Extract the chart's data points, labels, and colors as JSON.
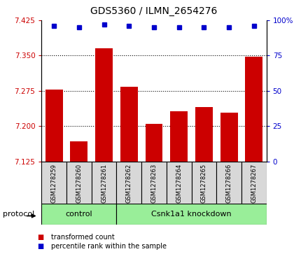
{
  "title": "GDS5360 / ILMN_2654276",
  "samples": [
    "GSM1278259",
    "GSM1278260",
    "GSM1278261",
    "GSM1278262",
    "GSM1278263",
    "GSM1278264",
    "GSM1278265",
    "GSM1278266",
    "GSM1278267"
  ],
  "bar_values": [
    7.278,
    7.168,
    7.365,
    7.283,
    7.205,
    7.232,
    7.24,
    7.228,
    7.348
  ],
  "percentile_values": [
    96,
    95,
    97,
    96,
    95,
    95,
    95,
    95,
    96
  ],
  "ylim_left": [
    7.125,
    7.425
  ],
  "ylim_right": [
    0,
    100
  ],
  "yticks_left": [
    7.125,
    7.2,
    7.275,
    7.35,
    7.425
  ],
  "yticks_right": [
    0,
    25,
    50,
    75,
    100
  ],
  "bar_color": "#cc0000",
  "dot_color": "#0000cc",
  "grid_lines": [
    7.2,
    7.275,
    7.35
  ],
  "control_samples": [
    0,
    1,
    2
  ],
  "knockdown_samples": [
    3,
    4,
    5,
    6,
    7,
    8
  ],
  "control_label": "control",
  "knockdown_label": "Csnk1a1 knockdown",
  "protocol_label": "protocol",
  "legend_bar_label": "transformed count",
  "legend_dot_label": "percentile rank within the sample",
  "group_box_color": "#99ee99",
  "sample_box_color": "#d8d8d8",
  "left_tick_color": "#cc0000",
  "right_tick_color": "#0000cc",
  "bg_color": "#ffffff"
}
